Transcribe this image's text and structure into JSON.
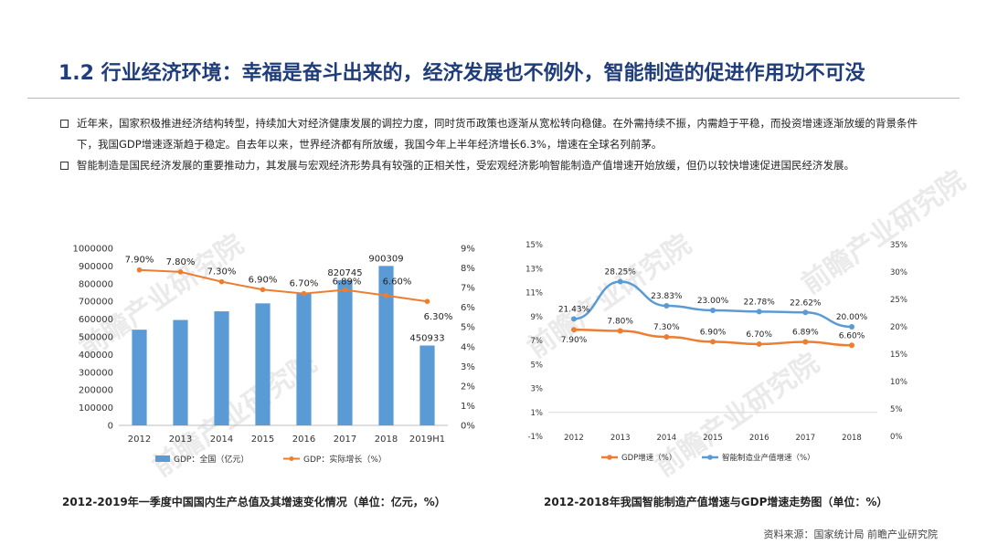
{
  "title": "1.2 行业经济环境：幸福是奋斗出来的，经济发展也不例外，智能制造的促进作用功不可没",
  "bullets": [
    {
      "text": "近年来，国家积极推进经济结构转型，持续加大对经济健康发展的调控力度，同时货币政策也逐渐从宽松转向稳健。在外需持续不振，内需趋于平稳，而投资增速逐渐放缓的背景条件下，我国GDP增速逐渐趋于稳定。自去年以来，世界经济都有所放缓，我国今年上半年经济增长6.3%，增速在全球名列前茅。"
    },
    {
      "text": "智能制造是国民经济发展的重要推动力，其发展与宏观经济形势具有较强的正相关性，受宏观经济影响智能制造产值增速开始放缓，但仍以较快增速促进国民经济发展。"
    }
  ],
  "watermark": "前瞻产业研究院",
  "chart_data": [
    {
      "type": "bar",
      "categories": [
        "2012",
        "2013",
        "2014",
        "2015",
        "2016",
        "2017",
        "2018",
        "2019H1"
      ],
      "series": [
        {
          "name": "GDP：全国（亿元）",
          "kind": "bar",
          "axis": "left",
          "color": "#5b9bd5",
          "values": [
            540367,
            595244,
            643974,
            689052,
            744127,
            820745,
            900309,
            450933
          ],
          "data_labels": [
            "",
            "",
            "",
            "",
            "",
            "820745",
            "900309",
            "450933"
          ]
        },
        {
          "name": "GDP：实际增长（%）",
          "kind": "line",
          "axis": "right",
          "color": "#ed7d31",
          "values": [
            7.9,
            7.8,
            7.3,
            6.9,
            6.7,
            6.89,
            6.6,
            6.3
          ],
          "data_labels": [
            "7.90%",
            "7.80%",
            "7.30%",
            "6.90%",
            "6.70%",
            "6.89%",
            "6.60%",
            "6.30%"
          ]
        }
      ],
      "y_left": {
        "min": 0,
        "max": 1000000,
        "ticks": [
          "0",
          "100000",
          "200000",
          "300000",
          "400000",
          "500000",
          "600000",
          "700000",
          "800000",
          "900000",
          "1000000"
        ]
      },
      "y_right": {
        "min": 0,
        "max": 9,
        "ticks": [
          "0%",
          "1%",
          "2%",
          "3%",
          "4%",
          "5%",
          "6%",
          "7%",
          "8%",
          "9%"
        ]
      },
      "legend": "bottom",
      "caption": "2012-2019年一季度中国国内生产总值及其增速变化情况（单位：亿元，%）"
    },
    {
      "type": "line",
      "categories": [
        "2012",
        "2013",
        "2014",
        "2015",
        "2016",
        "2017",
        "2018"
      ],
      "series": [
        {
          "name": "GDP增速（%）",
          "axis": "left",
          "color": "#ed7d31",
          "values": [
            7.9,
            7.8,
            7.3,
            6.9,
            6.7,
            6.89,
            6.6
          ],
          "data_labels": [
            "7.90%",
            "7.80%",
            "7.30%",
            "6.90%",
            "6.70%",
            "6.89%",
            "6.60%"
          ]
        },
        {
          "name": "智能制造业产值增速（%）",
          "axis": "right",
          "color": "#5b9bd5",
          "values": [
            21.43,
            28.25,
            23.83,
            23.0,
            22.78,
            22.62,
            20.0
          ],
          "data_labels": [
            "21.43%",
            "28.25%",
            "23.83%",
            "23.00%",
            "22.78%",
            "22.62%",
            "20.00%"
          ]
        }
      ],
      "y_left": {
        "min": -1,
        "max": 15,
        "ticks": [
          "-1%",
          "1%",
          "3%",
          "5%",
          "7%",
          "9%",
          "11%",
          "13%",
          "15%"
        ]
      },
      "y_right": {
        "min": 0,
        "max": 35,
        "ticks": [
          "0%",
          "5%",
          "10%",
          "15%",
          "20%",
          "25%",
          "30%",
          "35%"
        ]
      },
      "legend": "bottom",
      "caption": "2012-2018年我国智能制造产值增速与GDP增速走势图（单位：%）"
    }
  ],
  "source": "资料来源：国家统计局 前瞻产业研究院"
}
